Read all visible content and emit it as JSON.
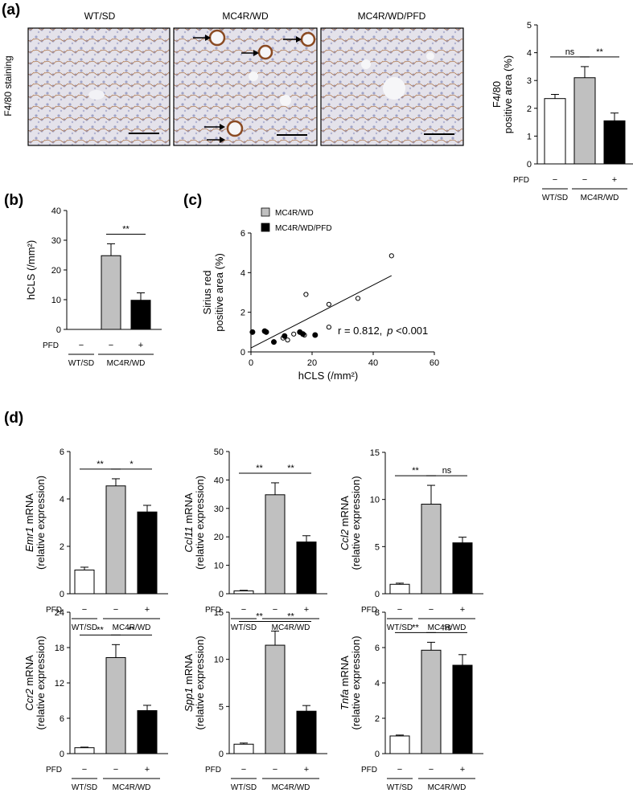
{
  "panel_labels": {
    "a": "(a)",
    "b": "(b)",
    "c": "(c)",
    "d": "(d)"
  },
  "staining": {
    "side_label": "F4/80 staining",
    "images": [
      {
        "title": "WT/SD"
      },
      {
        "title": "MC4R/WD"
      },
      {
        "title": "MC4R/WD/PFD"
      }
    ]
  },
  "group_labels": {
    "pfd": "PFD",
    "minus": "−",
    "plus": "+",
    "wt": "WT/SD",
    "mc4r": "MC4R/WD"
  },
  "colors": {
    "wt": "#ffffff",
    "wd": "#c0c0c0",
    "pfd": "#000000"
  },
  "chart_data": [
    {
      "id": "f480",
      "type": "bar",
      "ylabel": "positive area (%)",
      "ylabel_italic": "",
      "ylabel_top": "F4/80",
      "ylim": [
        0,
        5
      ],
      "yticks": [
        0,
        1,
        2,
        3,
        4,
        5
      ],
      "values": [
        2.35,
        3.1,
        1.55
      ],
      "errors": [
        0.15,
        0.4,
        0.28
      ],
      "sig": [
        {
          "from": 0,
          "to": 1,
          "label": "ns"
        },
        {
          "from": 1,
          "to": 2,
          "label": "**"
        }
      ]
    },
    {
      "id": "hcls",
      "type": "bar",
      "ylabel": "hCLS (/mm²)",
      "ylabel_italic": "",
      "ylabel_top": "",
      "ylim": [
        0,
        40
      ],
      "yticks": [
        0,
        10,
        20,
        30,
        40
      ],
      "values": [
        0,
        24.8,
        9.8
      ],
      "errors": [
        0,
        4.0,
        2.5
      ],
      "sig": [
        {
          "from": 1,
          "to": 2,
          "label": "**"
        }
      ]
    },
    {
      "id": "emr1",
      "type": "bar",
      "ylabel": " mRNA",
      "ylabel_italic": "Emr1",
      "ylabel_top": "(relative expression)",
      "ylim": [
        0,
        6
      ],
      "yticks": [
        0,
        2,
        4,
        6
      ],
      "values": [
        1.0,
        4.55,
        3.45
      ],
      "errors": [
        0.12,
        0.3,
        0.28
      ],
      "sig": [
        {
          "from": 0,
          "to": 1,
          "label": "**"
        },
        {
          "from": 1,
          "to": 2,
          "label": "*"
        }
      ]
    },
    {
      "id": "ccl11",
      "type": "bar",
      "ylabel": " mRNA",
      "ylabel_italic": "Ccl11",
      "ylabel_top": "(relative expression)",
      "ylim": [
        0,
        50
      ],
      "yticks": [
        0,
        10,
        20,
        30,
        40,
        50
      ],
      "values": [
        1.0,
        34.8,
        18.2
      ],
      "errors": [
        0.2,
        4.2,
        2.2
      ],
      "sig": [
        {
          "from": 0,
          "to": 1,
          "label": "**"
        },
        {
          "from": 1,
          "to": 2,
          "label": "**"
        }
      ]
    },
    {
      "id": "ccl2",
      "type": "bar",
      "ylabel": " mRNA",
      "ylabel_italic": "Ccl2",
      "ylabel_top": "(relative expression)",
      "ylim": [
        0,
        15
      ],
      "yticks": [
        0,
        5,
        10,
        15
      ],
      "values": [
        1.0,
        9.5,
        5.4
      ],
      "errors": [
        0.12,
        2.0,
        0.6
      ],
      "sig": [
        {
          "from": 0,
          "to": 1,
          "label": "**"
        },
        {
          "from": 1,
          "to": 2,
          "label": "ns"
        }
      ]
    },
    {
      "id": "ccr2",
      "type": "bar",
      "ylabel": " mRNA",
      "ylabel_italic": "Ccr2",
      "ylabel_top": "(relative expression)",
      "ylim": [
        0,
        24
      ],
      "yticks": [
        0,
        6,
        12,
        18,
        24
      ],
      "values": [
        1.0,
        16.3,
        7.3
      ],
      "errors": [
        0.1,
        2.2,
        0.9
      ],
      "sig": [
        {
          "from": 0,
          "to": 1,
          "label": "**"
        },
        {
          "from": 1,
          "to": 2,
          "label": "**"
        }
      ]
    },
    {
      "id": "spp1",
      "type": "bar",
      "ylabel": " mRNA",
      "ylabel_italic": "Spp1",
      "ylabel_top": "(relative expression)",
      "ylim": [
        0,
        15
      ],
      "yticks": [
        0,
        5,
        10,
        15
      ],
      "values": [
        1.0,
        11.5,
        4.5
      ],
      "errors": [
        0.12,
        1.5,
        0.6
      ],
      "sig": [
        {
          "from": 0,
          "to": 1,
          "label": "**"
        },
        {
          "from": 1,
          "to": 2,
          "label": "**"
        }
      ]
    },
    {
      "id": "tnfa",
      "type": "bar",
      "ylabel": " mRNA",
      "ylabel_italic": "Tnfa",
      "ylabel_top": "(relative expression)",
      "ylim": [
        0,
        8
      ],
      "yticks": [
        0,
        2,
        4,
        6,
        8
      ],
      "values": [
        1.0,
        5.85,
        5.0
      ],
      "errors": [
        0.05,
        0.45,
        0.6
      ],
      "sig": [
        {
          "from": 0,
          "to": 1,
          "label": "**"
        },
        {
          "from": 1,
          "to": 2,
          "label": "ns"
        }
      ]
    },
    {
      "id": "corr",
      "type": "scatter",
      "xlabel": "hCLS (/mm²)",
      "ylabel": "positive area (%)",
      "ylabel_top": "Sirius red",
      "xlim": [
        0,
        60
      ],
      "ylim": [
        0,
        6
      ],
      "xticks": [
        0,
        20,
        40,
        60
      ],
      "yticks": [
        0,
        2,
        4,
        6
      ],
      "legend": [
        {
          "name": "MC4R/WD",
          "color": "#c0c0c0"
        },
        {
          "name": "MC4R/WD/PFD",
          "color": "#000000"
        }
      ],
      "series": [
        {
          "name": "MC4R/WD",
          "marker": "open",
          "x": [
            46,
            35,
            25.5,
            25.5,
            18,
            17.5,
            14,
            12,
            10.5
          ],
          "y": [
            4.85,
            2.7,
            2.4,
            1.25,
            2.9,
            0.85,
            0.9,
            0.6,
            0.7
          ]
        },
        {
          "name": "MC4R/WD/PFD",
          "marker": "filled",
          "x": [
            0.5,
            4.5,
            5,
            7.5,
            11,
            16,
            17,
            21
          ],
          "y": [
            1.0,
            1.05,
            1.0,
            0.5,
            0.8,
            1.0,
            0.9,
            0.85
          ]
        }
      ],
      "fit": {
        "x": [
          0,
          46
        ],
        "y": [
          0.2,
          3.85
        ]
      },
      "stat_r": "r = 0.812,",
      "stat_p_letter": "p",
      "stat_p_value": " <0.001"
    }
  ]
}
